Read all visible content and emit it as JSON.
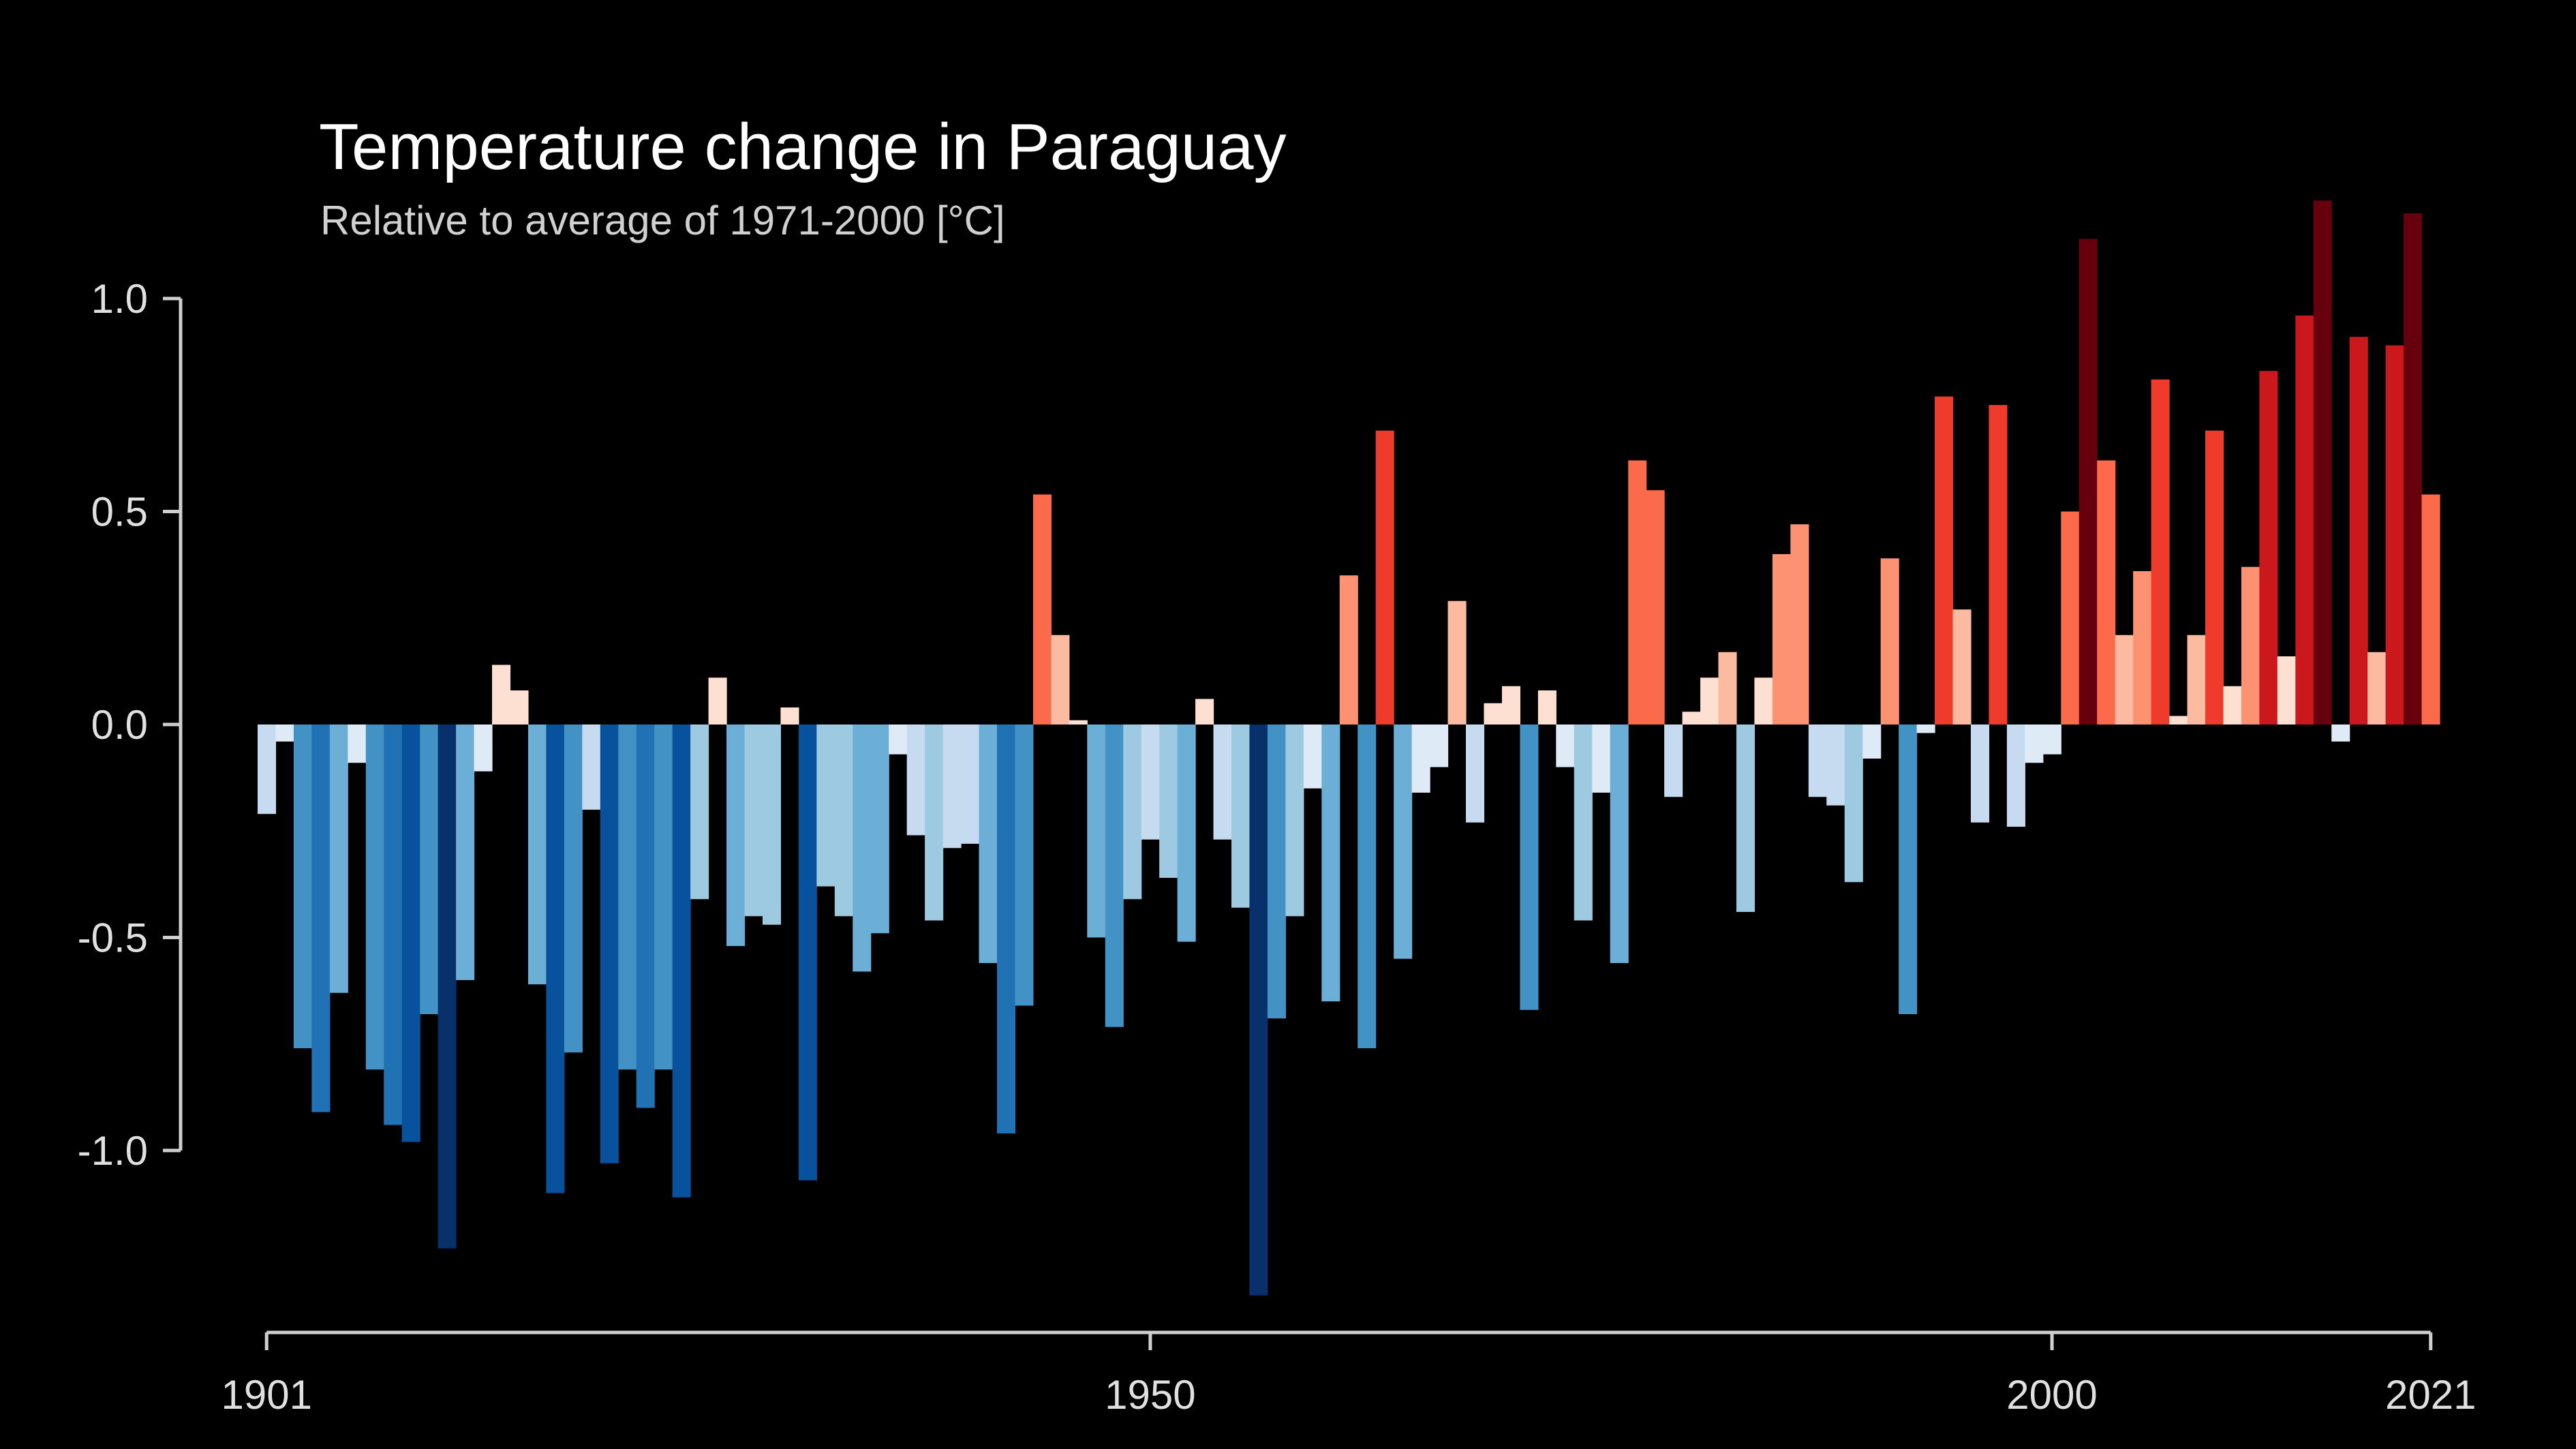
{
  "chart_data": {
    "type": "bar",
    "title": "Temperature change in Paraguay",
    "subtitle": "Relative to average of 1971-2000  [°C]",
    "xlabel": "",
    "ylabel": "",
    "x_start": 1901,
    "x_end": 2021,
    "xlim": [
      1901,
      2021
    ],
    "ylim": [
      -1.45,
      1.35
    ],
    "x_ticks": [
      1901,
      1950,
      2000,
      2021
    ],
    "y_ticks": [
      "1.0",
      "0.5",
      "0.0",
      "-0.5",
      "-1.0"
    ],
    "y_tick_values": [
      1.0,
      0.5,
      0.0,
      -0.5,
      -1.0
    ],
    "grid": false,
    "legend": "none",
    "color_scale": {
      "min": -1.3,
      "max": 1.3,
      "colors": [
        "#08306b",
        "#08519c",
        "#2171b5",
        "#4292c6",
        "#6baed6",
        "#9ecae1",
        "#c6dbef",
        "#deebf7",
        "#fee0d2",
        "#fcbba1",
        "#fc9272",
        "#fb6a4a",
        "#ef3b2c",
        "#cb181d",
        "#a50f15",
        "#67000d"
      ]
    },
    "values": [
      -0.21,
      -0.04,
      -0.76,
      -0.91,
      -0.63,
      -0.09,
      -0.81,
      -0.94,
      -0.98,
      -0.68,
      -1.23,
      -0.6,
      -0.11,
      0.14,
      0.08,
      -0.61,
      -1.1,
      -0.77,
      -0.2,
      -1.03,
      -0.81,
      -0.9,
      -0.81,
      -1.11,
      -0.41,
      0.11,
      -0.52,
      -0.45,
      -0.47,
      0.04,
      -1.07,
      -0.38,
      -0.45,
      -0.58,
      -0.49,
      -0.07,
      -0.26,
      -0.46,
      -0.29,
      -0.28,
      -0.56,
      -0.96,
      -0.66,
      0.54,
      0.21,
      0.01,
      -0.5,
      -0.71,
      -0.41,
      -0.27,
      -0.36,
      -0.51,
      0.06,
      -0.27,
      -0.43,
      -1.34,
      -0.69,
      -0.45,
      -0.15,
      -0.65,
      0.35,
      -0.76,
      0.69,
      -0.55,
      -0.16,
      -0.1,
      0.29,
      -0.23,
      0.05,
      0.09,
      -0.67,
      0.08,
      -0.1,
      -0.46,
      -0.16,
      -0.56,
      0.62,
      0.55,
      -0.17,
      0.03,
      0.11,
      0.17,
      -0.44,
      0.11,
      0.4,
      0.47,
      -0.17,
      -0.19,
      -0.37,
      -0.08,
      0.39,
      -0.68,
      -0.02,
      0.77,
      0.27,
      -0.23,
      0.75,
      -0.24,
      -0.09,
      -0.07,
      0.5,
      1.14,
      0.62,
      0.21,
      0.36,
      0.81,
      0.02,
      0.21,
      0.69,
      0.09,
      0.37,
      0.83,
      0.16,
      0.96,
      1.23,
      -0.04,
      0.91,
      0.17,
      0.89,
      1.2,
      0.54
    ]
  }
}
